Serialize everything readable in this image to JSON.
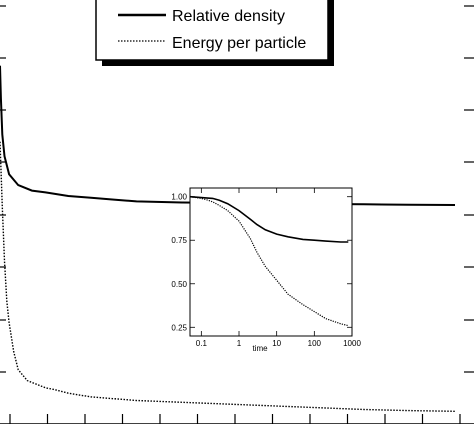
{
  "chart_data": [
    {
      "type": "line",
      "title": "",
      "xlabel": "",
      "ylabel": "",
      "grid": false,
      "legend_placement": "top-center",
      "xlim": [
        0,
        100
      ],
      "ylim": [
        0,
        1.05
      ],
      "series": [
        {
          "name": "Relative density",
          "style": "solid",
          "color": "#000000",
          "x": [
            0,
            0.2,
            0.5,
            1,
            2,
            4,
            7,
            10,
            15,
            20,
            25,
            30,
            40,
            50,
            60,
            70,
            80,
            90,
            100
          ],
          "y": [
            0.99,
            0.9,
            0.8,
            0.74,
            0.69,
            0.66,
            0.645,
            0.64,
            0.63,
            0.625,
            0.62,
            0.615,
            0.612,
            0.611,
            0.61,
            0.608,
            0.607,
            0.606,
            0.605
          ]
        },
        {
          "name": "Energy per particle",
          "style": "dotted",
          "color": "#000000",
          "x": [
            0,
            0.5,
            1,
            1.5,
            2,
            3,
            4,
            6,
            8,
            10,
            12,
            15,
            20,
            25,
            30,
            40,
            50,
            60,
            70,
            80,
            90,
            100
          ],
          "y": [
            0.78,
            0.6,
            0.45,
            0.34,
            0.28,
            0.2,
            0.15,
            0.12,
            0.11,
            0.1,
            0.095,
            0.085,
            0.075,
            0.07,
            0.065,
            0.06,
            0.055,
            0.05,
            0.045,
            0.04,
            0.037,
            0.035
          ]
        }
      ]
    },
    {
      "type": "line",
      "title": "",
      "xlabel": "time",
      "ylabel": "",
      "xscale": "log",
      "grid": false,
      "xlim": [
        0.05,
        1000
      ],
      "ylim": [
        0.2,
        1.05
      ],
      "x_ticks": [
        0.1,
        1,
        10,
        100,
        1000
      ],
      "x_tick_labels": [
        "0.1",
        "1",
        "10",
        "100",
        "1000"
      ],
      "y_ticks": [
        0.25,
        0.5,
        0.75,
        1.0
      ],
      "y_tick_labels": [
        "0.25",
        "0.50",
        "0.75",
        "1.00"
      ],
      "series": [
        {
          "style": "solid",
          "color": "#000000",
          "x": [
            0.05,
            0.1,
            0.2,
            0.3,
            0.5,
            1,
            2,
            3,
            5,
            10,
            20,
            50,
            100,
            200,
            500,
            800
          ],
          "y": [
            1.0,
            0.995,
            0.99,
            0.98,
            0.96,
            0.92,
            0.87,
            0.84,
            0.81,
            0.785,
            0.77,
            0.755,
            0.75,
            0.745,
            0.74,
            0.74
          ]
        },
        {
          "style": "dotted",
          "color": "#000000",
          "x": [
            0.05,
            0.1,
            0.15,
            0.2,
            0.3,
            0.5,
            1,
            2,
            3,
            5,
            10,
            20,
            50,
            100,
            200,
            500,
            800
          ],
          "y": [
            1.0,
            0.99,
            0.98,
            0.97,
            0.95,
            0.92,
            0.86,
            0.76,
            0.68,
            0.6,
            0.52,
            0.44,
            0.38,
            0.34,
            0.3,
            0.27,
            0.26
          ]
        }
      ]
    }
  ]
}
